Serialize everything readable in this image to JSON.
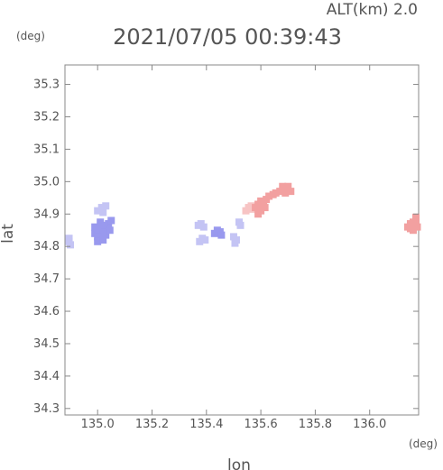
{
  "header": {
    "altitude_label": "ALT(km) 2.0",
    "timestamp": "2021/07/05 00:39:43"
  },
  "chart_data": {
    "type": "scatter",
    "xlabel": "lon",
    "ylabel": "lat",
    "x_unit": "(deg)",
    "y_unit": "(deg)",
    "xlim": [
      134.88,
      136.18
    ],
    "ylim": [
      34.28,
      35.36
    ],
    "x_ticks": [
      135.0,
      135.2,
      135.4,
      135.6,
      135.8,
      136.0
    ],
    "y_ticks": [
      34.3,
      34.4,
      34.5,
      34.6,
      34.7,
      34.8,
      34.9,
      35.0,
      35.1,
      35.2,
      35.3
    ],
    "grid": false,
    "colors": {
      "negative": "#9999ee",
      "negative_light": "#c4c4f4",
      "positive": "#f2a0a0",
      "positive_light": "#f7c4c4",
      "frame": "#888888"
    },
    "clusters": [
      {
        "tone": "negative_light",
        "points": [
          [
            134.895,
            34.815
          ],
          [
            134.9,
            34.805
          ],
          [
            134.895,
            34.825
          ]
        ]
      },
      {
        "tone": "negative",
        "points": [
          [
            134.99,
            34.84
          ],
          [
            135.0,
            34.85
          ],
          [
            135.01,
            34.86
          ],
          [
            135.02,
            34.84
          ],
          [
            135.03,
            34.855
          ],
          [
            135.0,
            34.83
          ],
          [
            135.015,
            34.825
          ],
          [
            135.03,
            34.835
          ],
          [
            135.04,
            34.87
          ],
          [
            135.05,
            34.88
          ],
          [
            134.99,
            34.86
          ],
          [
            135.01,
            34.875
          ],
          [
            135.025,
            34.865
          ],
          [
            135.045,
            34.85
          ],
          [
            135.0,
            34.815
          ],
          [
            135.02,
            34.82
          ]
        ]
      },
      {
        "tone": "negative_light",
        "points": [
          [
            135.0,
            34.91
          ],
          [
            135.015,
            34.92
          ],
          [
            135.03,
            34.925
          ],
          [
            135.02,
            34.905
          ]
        ]
      },
      {
        "tone": "negative_light",
        "points": [
          [
            135.37,
            34.865
          ],
          [
            135.38,
            34.87
          ],
          [
            135.39,
            34.86
          ],
          [
            135.385,
            34.825
          ],
          [
            135.375,
            34.815
          ],
          [
            135.395,
            34.82
          ]
        ]
      },
      {
        "tone": "negative",
        "points": [
          [
            135.43,
            34.84
          ],
          [
            135.44,
            34.85
          ],
          [
            135.45,
            34.845
          ],
          [
            135.455,
            34.835
          ]
        ]
      },
      {
        "tone": "negative_light",
        "points": [
          [
            135.505,
            34.81
          ],
          [
            135.51,
            34.82
          ],
          [
            135.5,
            34.83
          ],
          [
            135.52,
            34.875
          ],
          [
            135.525,
            34.865
          ]
        ]
      },
      {
        "tone": "positive_light",
        "points": [
          [
            135.545,
            34.91
          ],
          [
            135.555,
            34.92
          ],
          [
            135.565,
            34.925
          ],
          [
            135.57,
            34.915
          ]
        ]
      },
      {
        "tone": "positive",
        "points": [
          [
            135.58,
            34.92
          ],
          [
            135.59,
            34.93
          ],
          [
            135.6,
            34.94
          ],
          [
            135.61,
            34.935
          ],
          [
            135.62,
            34.945
          ],
          [
            135.6,
            34.91
          ],
          [
            135.615,
            34.92
          ],
          [
            135.63,
            34.955
          ],
          [
            135.645,
            34.96
          ],
          [
            135.655,
            34.965
          ],
          [
            135.67,
            34.97
          ],
          [
            135.685,
            34.975
          ],
          [
            135.695,
            34.98
          ],
          [
            135.7,
            34.985
          ],
          [
            135.71,
            34.97
          ],
          [
            135.68,
            34.985
          ],
          [
            135.69,
            34.965
          ],
          [
            135.59,
            34.9
          ]
        ]
      },
      {
        "tone": "positive",
        "points": [
          [
            136.14,
            34.86
          ],
          [
            136.15,
            34.87
          ],
          [
            136.16,
            34.875
          ],
          [
            136.17,
            34.88
          ],
          [
            136.175,
            34.86
          ],
          [
            136.16,
            34.85
          ],
          [
            136.15,
            34.855
          ],
          [
            136.17,
            34.89
          ]
        ]
      }
    ]
  }
}
